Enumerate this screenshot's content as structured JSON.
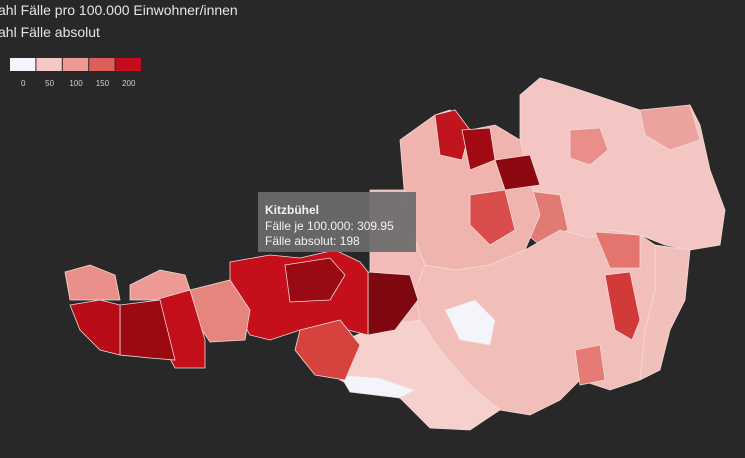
{
  "options": [
    "ahl Fälle pro 100.000 Einwohner/innen",
    "ahl Fälle absolut"
  ],
  "legend": {
    "ticks": [
      0,
      50,
      100,
      150,
      200
    ],
    "colors": [
      "#f4f5fb",
      "#f6c8c6",
      "#ec9a93",
      "#de5f5a",
      "#c40d1f"
    ]
  },
  "tooltip": {
    "title": "Kitzbühel",
    "lines": [
      "Fälle je 100.000: 309.95",
      "Fälle absolut: 198"
    ]
  }
}
